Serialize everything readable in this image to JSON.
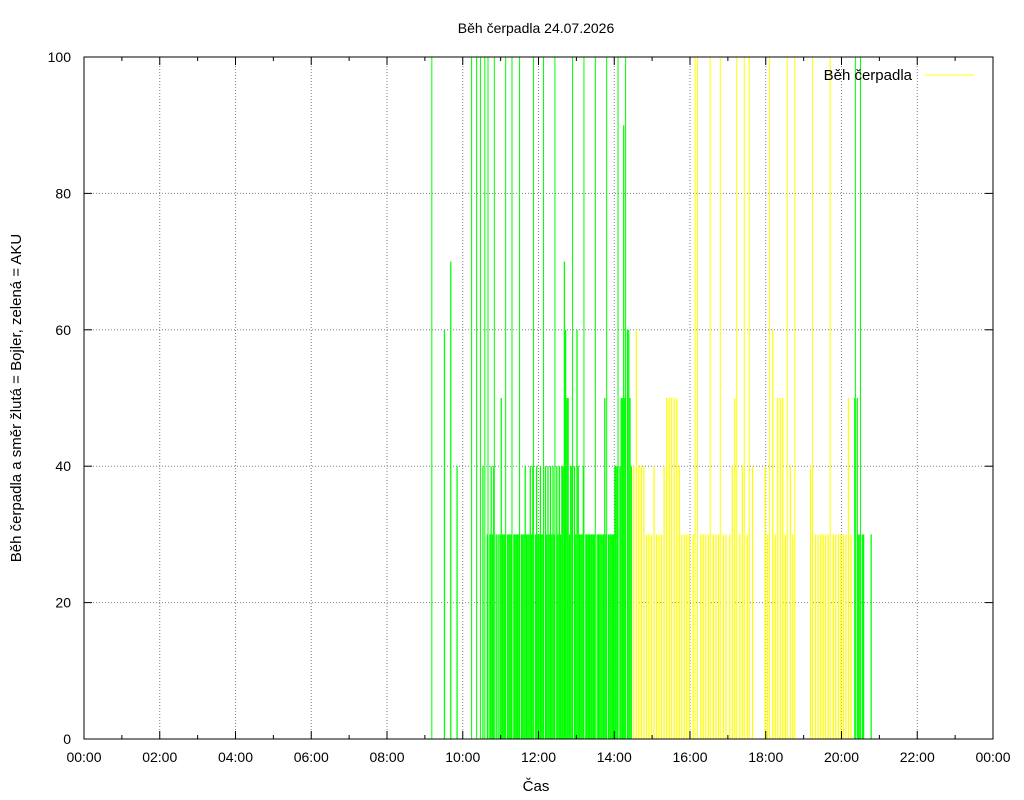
{
  "chart_data": {
    "type": "bar",
    "title": "Běh čerpadla 24.07.2026",
    "xlabel": "Čas",
    "ylabel": "Běh čerpadla a směr žlutá = Bojler, zelená = AKU",
    "xlim_hours": [
      0,
      24
    ],
    "ylim": [
      0,
      100
    ],
    "x_ticks": [
      "00:00",
      "02:00",
      "04:00",
      "06:00",
      "08:00",
      "10:00",
      "12:00",
      "14:00",
      "16:00",
      "18:00",
      "20:00",
      "22:00",
      "00:00"
    ],
    "y_ticks": [
      "0",
      "20",
      "40",
      "60",
      "80",
      "100"
    ],
    "grid": true,
    "legend": {
      "position": "top-right",
      "entries": [
        {
          "label": "Běh čerpadla",
          "color": "#ffff00"
        }
      ]
    },
    "colors": {
      "aku": "#00ff00",
      "bojler": "#ffff00",
      "grid": "#808080"
    },
    "series": [
      {
        "color": "#00ff00",
        "bars": [
          [
            "09:11",
            100
          ],
          [
            "09:30",
            60
          ],
          [
            "09:40",
            70
          ],
          [
            "09:50",
            40
          ],
          [
            "10:14",
            100
          ],
          [
            "10:22",
            100
          ],
          [
            "10:28",
            100
          ],
          [
            "10:31",
            40
          ],
          [
            "10:35",
            100
          ],
          [
            "10:38",
            30
          ],
          [
            "10:40",
            100
          ],
          [
            "10:42",
            30
          ],
          [
            "10:44",
            40
          ],
          [
            "10:46",
            30
          ],
          [
            "10:48",
            40
          ],
          [
            "10:50",
            100
          ],
          [
            "10:52",
            30
          ],
          [
            "10:55",
            30
          ],
          [
            "10:58",
            30
          ],
          [
            "11:00",
            50
          ],
          [
            "11:02",
            30
          ],
          [
            "11:04",
            30
          ],
          [
            "11:06",
            30
          ],
          [
            "11:08",
            100
          ],
          [
            "11:10",
            30
          ],
          [
            "11:12",
            30
          ],
          [
            "11:14",
            30
          ],
          [
            "11:16",
            30
          ],
          [
            "11:18",
            100
          ],
          [
            "11:20",
            30
          ],
          [
            "11:22",
            30
          ],
          [
            "11:24",
            30
          ],
          [
            "11:26",
            30
          ],
          [
            "11:28",
            30
          ],
          [
            "11:30",
            100
          ],
          [
            "11:32",
            30
          ],
          [
            "11:34",
            30
          ],
          [
            "11:36",
            30
          ],
          [
            "11:38",
            40
          ],
          [
            "11:40",
            30
          ],
          [
            "11:42",
            30
          ],
          [
            "11:44",
            30
          ],
          [
            "11:46",
            40
          ],
          [
            "11:48",
            30
          ],
          [
            "11:50",
            40
          ],
          [
            "11:52",
            100
          ],
          [
            "11:54",
            30
          ],
          [
            "11:56",
            40
          ],
          [
            "11:58",
            30
          ],
          [
            "12:00",
            30
          ],
          [
            "12:02",
            40
          ],
          [
            "12:04",
            30
          ],
          [
            "12:06",
            30
          ],
          [
            "12:08",
            100
          ],
          [
            "12:10",
            40
          ],
          [
            "12:12",
            30
          ],
          [
            "12:14",
            40
          ],
          [
            "12:16",
            30
          ],
          [
            "12:18",
            40
          ],
          [
            "12:20",
            30
          ],
          [
            "12:22",
            40
          ],
          [
            "12:24",
            30
          ],
          [
            "12:26",
            100
          ],
          [
            "12:28",
            40
          ],
          [
            "12:30",
            30
          ],
          [
            "12:32",
            40
          ],
          [
            "12:34",
            30
          ],
          [
            "12:36",
            40
          ],
          [
            "12:38",
            40
          ],
          [
            "12:40",
            70
          ],
          [
            "12:42",
            60
          ],
          [
            "12:44",
            50
          ],
          [
            "12:46",
            50
          ],
          [
            "12:48",
            30
          ],
          [
            "12:50",
            40
          ],
          [
            "12:52",
            40
          ],
          [
            "12:54",
            100
          ],
          [
            "12:56",
            40
          ],
          [
            "12:58",
            30
          ],
          [
            "13:00",
            60
          ],
          [
            "13:02",
            40
          ],
          [
            "13:04",
            30
          ],
          [
            "13:06",
            30
          ],
          [
            "13:08",
            30
          ],
          [
            "13:10",
            40
          ],
          [
            "13:12",
            100
          ],
          [
            "13:14",
            30
          ],
          [
            "13:16",
            30
          ],
          [
            "13:18",
            30
          ],
          [
            "13:20",
            30
          ],
          [
            "13:22",
            30
          ],
          [
            "13:24",
            30
          ],
          [
            "13:26",
            30
          ],
          [
            "13:28",
            30
          ],
          [
            "13:30",
            100
          ],
          [
            "13:32",
            30
          ],
          [
            "13:34",
            30
          ],
          [
            "13:36",
            30
          ],
          [
            "13:38",
            30
          ],
          [
            "13:40",
            30
          ],
          [
            "13:42",
            30
          ],
          [
            "13:44",
            50
          ],
          [
            "13:46",
            30
          ],
          [
            "13:48",
            100
          ],
          [
            "13:50",
            30
          ],
          [
            "13:52",
            30
          ],
          [
            "13:54",
            30
          ],
          [
            "13:56",
            30
          ],
          [
            "13:58",
            30
          ],
          [
            "14:00",
            40
          ],
          [
            "14:02",
            40
          ],
          [
            "14:04",
            40
          ],
          [
            "14:06",
            100
          ],
          [
            "14:08",
            40
          ],
          [
            "14:10",
            50
          ],
          [
            "14:12",
            50
          ],
          [
            "14:14",
            90
          ],
          [
            "14:16",
            50
          ],
          [
            "14:18",
            100
          ],
          [
            "14:20",
            60
          ],
          [
            "14:22",
            60
          ],
          [
            "14:24",
            50
          ],
          [
            "14:26",
            40
          ],
          [
            "20:20",
            50
          ],
          [
            "20:22",
            100
          ],
          [
            "20:24",
            50
          ],
          [
            "20:26",
            30
          ],
          [
            "20:28",
            30
          ],
          [
            "20:30",
            100
          ],
          [
            "20:32",
            30
          ],
          [
            "20:34",
            30
          ],
          [
            "20:46",
            30
          ]
        ]
      },
      {
        "color": "#ffff00",
        "bars": [
          [
            "14:30",
            40
          ],
          [
            "14:34",
            60
          ],
          [
            "14:38",
            40
          ],
          [
            "14:42",
            40
          ],
          [
            "14:46",
            40
          ],
          [
            "14:50",
            30
          ],
          [
            "14:54",
            30
          ],
          [
            "14:58",
            30
          ],
          [
            "15:02",
            40
          ],
          [
            "15:06",
            30
          ],
          [
            "15:10",
            30
          ],
          [
            "15:14",
            30
          ],
          [
            "15:18",
            40
          ],
          [
            "15:22",
            50
          ],
          [
            "15:26",
            50
          ],
          [
            "15:30",
            50
          ],
          [
            "15:34",
            50
          ],
          [
            "15:38",
            50
          ],
          [
            "15:42",
            40
          ],
          [
            "15:46",
            30
          ],
          [
            "15:50",
            30
          ],
          [
            "15:54",
            30
          ],
          [
            "15:58",
            30
          ],
          [
            "16:04",
            30
          ],
          [
            "16:08",
            100
          ],
          [
            "16:12",
            100
          ],
          [
            "16:16",
            30
          ],
          [
            "16:20",
            30
          ],
          [
            "16:24",
            30
          ],
          [
            "16:28",
            30
          ],
          [
            "16:32",
            100
          ],
          [
            "16:36",
            30
          ],
          [
            "16:40",
            30
          ],
          [
            "16:44",
            30
          ],
          [
            "16:48",
            100
          ],
          [
            "16:52",
            30
          ],
          [
            "16:56",
            30
          ],
          [
            "17:02",
            30
          ],
          [
            "17:06",
            40
          ],
          [
            "17:10",
            50
          ],
          [
            "17:14",
            100
          ],
          [
            "17:18",
            30
          ],
          [
            "17:22",
            40
          ],
          [
            "17:26",
            100
          ],
          [
            "17:30",
            30
          ],
          [
            "17:34",
            100
          ],
          [
            "17:38",
            40
          ],
          [
            "17:58",
            40
          ],
          [
            "18:02",
            30
          ],
          [
            "18:06",
            100
          ],
          [
            "18:10",
            60
          ],
          [
            "18:14",
            30
          ],
          [
            "18:18",
            50
          ],
          [
            "18:22",
            50
          ],
          [
            "18:26",
            50
          ],
          [
            "18:30",
            30
          ],
          [
            "18:34",
            100
          ],
          [
            "18:38",
            40
          ],
          [
            "18:42",
            30
          ],
          [
            "18:46",
            100
          ],
          [
            "19:10",
            40
          ],
          [
            "19:14",
            100
          ],
          [
            "19:18",
            30
          ],
          [
            "19:22",
            30
          ],
          [
            "19:26",
            30
          ],
          [
            "19:30",
            30
          ],
          [
            "19:34",
            30
          ],
          [
            "19:38",
            30
          ],
          [
            "19:42",
            100
          ],
          [
            "19:46",
            30
          ],
          [
            "19:50",
            30
          ],
          [
            "19:54",
            30
          ],
          [
            "19:58",
            30
          ],
          [
            "20:02",
            30
          ],
          [
            "20:06",
            30
          ],
          [
            "20:10",
            50
          ],
          [
            "20:14",
            30
          ]
        ]
      }
    ]
  }
}
